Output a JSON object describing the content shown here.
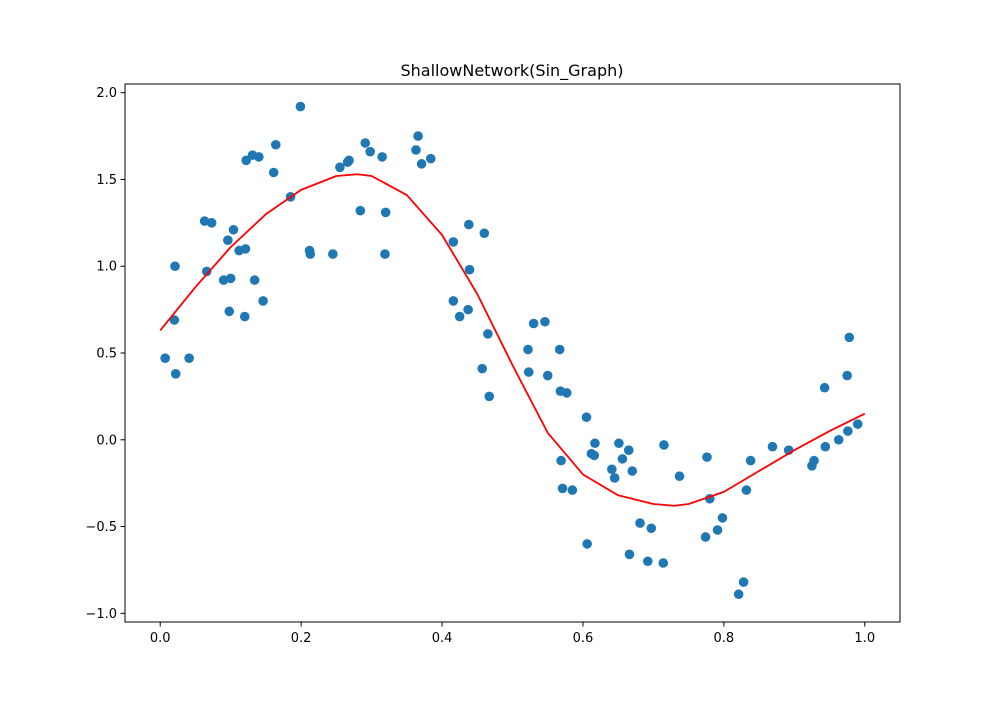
{
  "chart_data": {
    "type": "scatter",
    "title": "ShallowNetwork(Sin_Graph)",
    "xlabel": "",
    "ylabel": "",
    "xlim": [
      -0.05,
      1.05
    ],
    "ylim": [
      -1.05,
      2.05
    ],
    "xticks": [
      0.0,
      0.2,
      0.4,
      0.6,
      0.8,
      1.0
    ],
    "yticks": [
      -1.0,
      -0.5,
      0.0,
      0.5,
      1.0,
      1.5,
      2.0
    ],
    "xtick_labels": [
      "0.0",
      "0.2",
      "0.4",
      "0.6",
      "0.8",
      "1.0"
    ],
    "ytick_labels": [
      "−1.0",
      "−0.5",
      "0.0",
      "0.5",
      "1.0",
      "1.5",
      "2.0"
    ],
    "grid": false,
    "colors": {
      "scatter": "#1f77b4",
      "curve": "#ff0000",
      "axes": "#000000",
      "background": "#ffffff"
    },
    "series": [
      {
        "kind": "scatter",
        "points": [
          [
            0.007,
            0.47
          ],
          [
            0.02,
            0.69
          ],
          [
            0.021,
            1.0
          ],
          [
            0.022,
            0.38
          ],
          [
            0.041,
            0.47
          ],
          [
            0.063,
            1.26
          ],
          [
            0.066,
            0.97
          ],
          [
            0.073,
            1.25
          ],
          [
            0.09,
            0.92
          ],
          [
            0.096,
            1.15
          ],
          [
            0.098,
            0.74
          ],
          [
            0.1,
            0.93
          ],
          [
            0.104,
            1.21
          ],
          [
            0.112,
            1.09
          ],
          [
            0.12,
            0.71
          ],
          [
            0.121,
            1.1
          ],
          [
            0.122,
            1.61
          ],
          [
            0.131,
            1.64
          ],
          [
            0.134,
            0.92
          ],
          [
            0.14,
            1.63
          ],
          [
            0.146,
            0.8
          ],
          [
            0.161,
            1.54
          ],
          [
            0.164,
            1.7
          ],
          [
            0.185,
            1.4
          ],
          [
            0.199,
            1.92
          ],
          [
            0.212,
            1.09
          ],
          [
            0.213,
            1.07
          ],
          [
            0.245,
            1.07
          ],
          [
            0.255,
            1.57
          ],
          [
            0.266,
            1.6
          ],
          [
            0.268,
            1.61
          ],
          [
            0.284,
            1.32
          ],
          [
            0.291,
            1.71
          ],
          [
            0.298,
            1.66
          ],
          [
            0.315,
            1.63
          ],
          [
            0.319,
            1.07
          ],
          [
            0.32,
            1.31
          ],
          [
            0.363,
            1.67
          ],
          [
            0.366,
            1.75
          ],
          [
            0.371,
            1.59
          ],
          [
            0.384,
            1.62
          ],
          [
            0.416,
            0.8
          ],
          [
            0.416,
            1.14
          ],
          [
            0.425,
            0.71
          ],
          [
            0.437,
            0.75
          ],
          [
            0.438,
            1.24
          ],
          [
            0.439,
            0.98
          ],
          [
            0.457,
            0.41
          ],
          [
            0.46,
            1.19
          ],
          [
            0.465,
            0.61
          ],
          [
            0.467,
            0.25
          ],
          [
            0.522,
            0.52
          ],
          [
            0.523,
            0.39
          ],
          [
            0.53,
            0.67
          ],
          [
            0.546,
            0.68
          ],
          [
            0.55,
            0.37
          ],
          [
            0.567,
            0.52
          ],
          [
            0.568,
            0.28
          ],
          [
            0.569,
            -0.12
          ],
          [
            0.571,
            -0.28
          ],
          [
            0.577,
            0.27
          ],
          [
            0.585,
            -0.29
          ],
          [
            0.605,
            0.13
          ],
          [
            0.606,
            -0.6
          ],
          [
            0.612,
            -0.08
          ],
          [
            0.616,
            -0.09
          ],
          [
            0.617,
            -0.02
          ],
          [
            0.641,
            -0.17
          ],
          [
            0.645,
            -0.22
          ],
          [
            0.651,
            -0.02
          ],
          [
            0.656,
            -0.11
          ],
          [
            0.665,
            -0.06
          ],
          [
            0.666,
            -0.66
          ],
          [
            0.67,
            -0.18
          ],
          [
            0.681,
            -0.48
          ],
          [
            0.692,
            -0.7
          ],
          [
            0.697,
            -0.51
          ],
          [
            0.714,
            -0.71
          ],
          [
            0.715,
            -0.03
          ],
          [
            0.737,
            -0.21
          ],
          [
            0.774,
            -0.56
          ],
          [
            0.776,
            -0.1
          ],
          [
            0.78,
            -0.34
          ],
          [
            0.791,
            -0.52
          ],
          [
            0.798,
            -0.45
          ],
          [
            0.821,
            -0.89
          ],
          [
            0.828,
            -0.82
          ],
          [
            0.832,
            -0.29
          ],
          [
            0.838,
            -0.12
          ],
          [
            0.869,
            -0.04
          ],
          [
            0.892,
            -0.06
          ],
          [
            0.925,
            -0.15
          ],
          [
            0.928,
            -0.12
          ],
          [
            0.943,
            0.3
          ],
          [
            0.944,
            -0.04
          ],
          [
            0.963,
            0.0
          ],
          [
            0.975,
            0.37
          ],
          [
            0.976,
            0.05
          ],
          [
            0.978,
            0.59
          ],
          [
            0.99,
            0.09
          ]
        ]
      },
      {
        "kind": "line",
        "x": [
          0.0,
          0.05,
          0.1,
          0.15,
          0.2,
          0.25,
          0.28,
          0.3,
          0.35,
          0.4,
          0.45,
          0.5,
          0.55,
          0.6,
          0.65,
          0.7,
          0.73,
          0.75,
          0.8,
          0.85,
          0.9,
          0.95,
          1.0
        ],
        "y": [
          0.63,
          0.88,
          1.11,
          1.3,
          1.44,
          1.52,
          1.53,
          1.52,
          1.41,
          1.18,
          0.84,
          0.43,
          0.04,
          -0.2,
          -0.32,
          -0.37,
          -0.38,
          -0.37,
          -0.3,
          -0.18,
          -0.06,
          0.05,
          0.15
        ]
      }
    ]
  }
}
